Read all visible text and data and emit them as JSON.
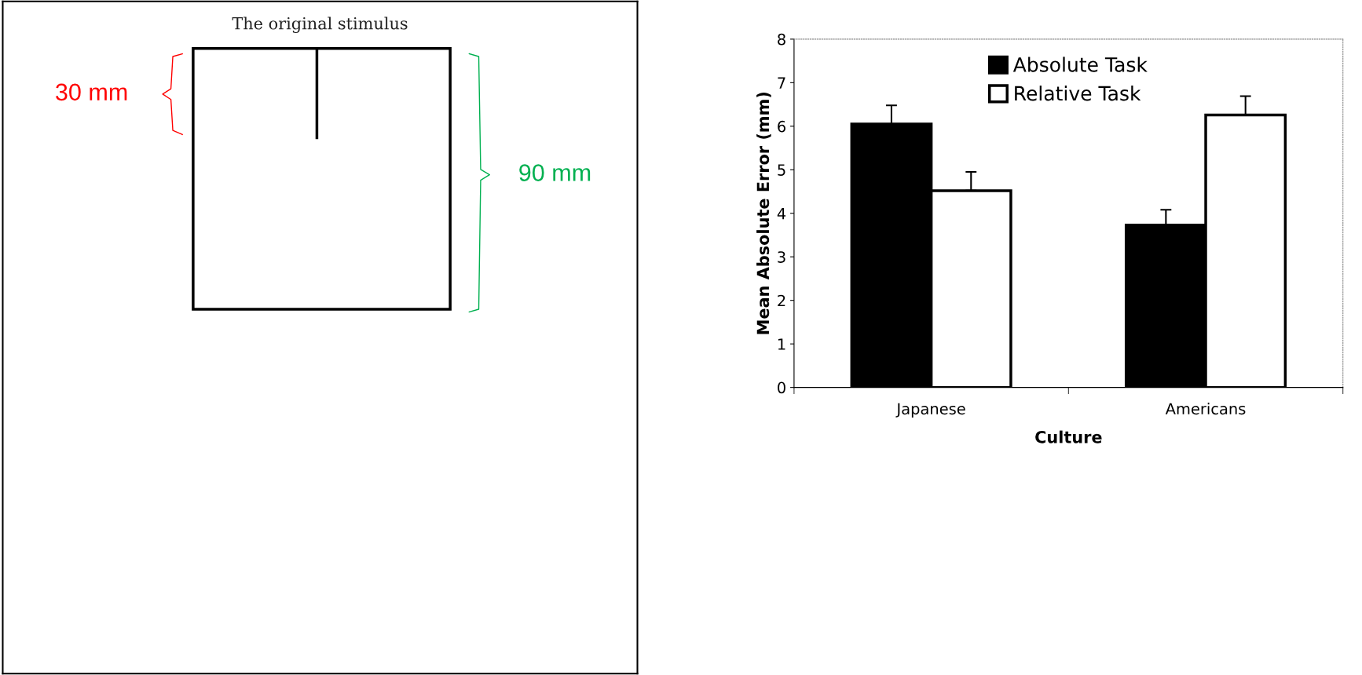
{
  "chart_data": [
    {
      "type": "other",
      "title": "The original stimulus",
      "annotations": [
        "30 mm",
        "90 mm"
      ]
    },
    {
      "type": "bar",
      "categories": [
        "Japanese",
        "Americans"
      ],
      "xlabel": "Culture",
      "ylabel": "Mean Absolute Error (mm)",
      "series": [
        {
          "name": "Absolute Task",
          "color": "#000000",
          "values": [
            6.05,
            3.73
          ],
          "errors": [
            [
              6.05,
              6.48
            ],
            [
              3.73,
              4.08
            ]
          ]
        },
        {
          "name": "Relative Task",
          "color": "#ffffff",
          "values": [
            4.52,
            6.26
          ],
          "errors": [
            [
              4.52,
              4.95
            ],
            [
              6.26,
              6.69
            ]
          ]
        }
      ],
      "ylim": [
        0,
        8
      ],
      "yticks": [
        0,
        1,
        2,
        3,
        4,
        5,
        6,
        7,
        8
      ],
      "grid": false,
      "legend": "top"
    }
  ]
}
